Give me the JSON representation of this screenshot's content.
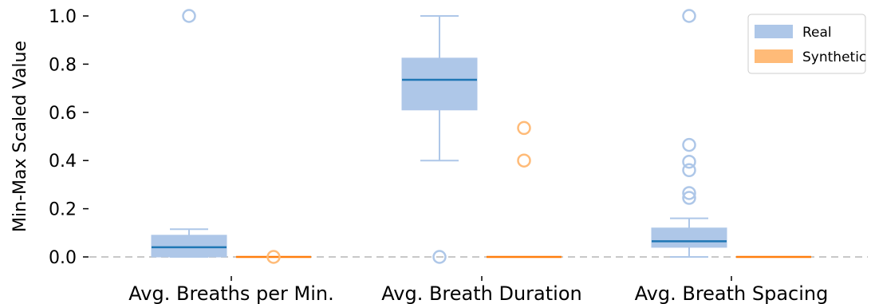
{
  "chart_data": {
    "type": "box",
    "title": "",
    "xlabel": "",
    "ylabel": "Min-Max Scaled Value",
    "ylim": [
      0,
      1.0
    ],
    "yticks": [
      "0.0",
      "0.2",
      "0.4",
      "0.6",
      "0.8",
      "1.0"
    ],
    "categories": [
      "Avg. Breaths per Min.",
      "Avg. Breath Duration",
      "Avg. Breath Spacing"
    ],
    "reference_line": {
      "y": 0.0,
      "style": "dashed"
    },
    "legend": {
      "position": "top-right"
    },
    "series": [
      {
        "name": "Real",
        "color": "#aec7e8",
        "median_color": "#1f77b4",
        "boxes": [
          {
            "whisker_low": 0.0,
            "q1": 0.0,
            "median": 0.04,
            "q3": 0.09,
            "whisker_high": 0.115,
            "outliers": [
              1.0
            ]
          },
          {
            "whisker_low": 0.4,
            "q1": 0.61,
            "median": 0.735,
            "q3": 0.825,
            "whisker_high": 1.0,
            "outliers": [
              0.0
            ]
          },
          {
            "whisker_low": 0.0,
            "q1": 0.04,
            "median": 0.065,
            "q3": 0.12,
            "whisker_high": 0.16,
            "outliers": [
              1.0,
              0.465,
              0.395,
              0.36,
              0.265,
              0.245
            ]
          }
        ]
      },
      {
        "name": "Synthetic",
        "color": "#ffbb78",
        "median_color": "#ff7f0e",
        "boxes": [
          {
            "whisker_low": 0.0,
            "q1": 0.0,
            "median": 0.0,
            "q3": 0.0,
            "whisker_high": 0.0,
            "outliers": [
              0.0
            ]
          },
          {
            "whisker_low": 0.0,
            "q1": 0.0,
            "median": 0.0,
            "q3": 0.0,
            "whisker_high": 0.0,
            "outliers": [
              0.535,
              0.4
            ]
          },
          {
            "whisker_low": 0.0,
            "q1": 0.0,
            "median": 0.0,
            "q3": 0.0,
            "whisker_high": 0.0,
            "outliers": []
          }
        ]
      }
    ]
  }
}
